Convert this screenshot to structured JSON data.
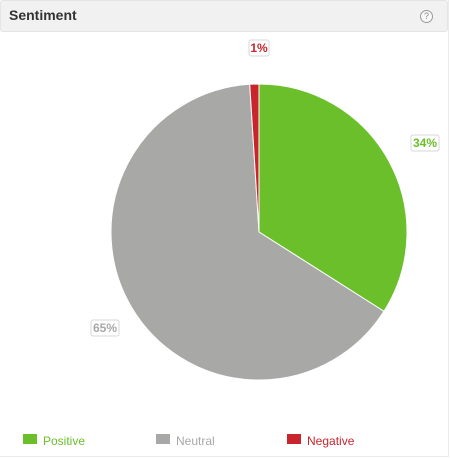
{
  "widget": {
    "title": "Sentiment",
    "help_icon": "help-circle-icon",
    "help_glyph": "?"
  },
  "chart_data": {
    "type": "pie",
    "title": "Sentiment",
    "categories": [
      "Positive",
      "Neutral",
      "Negative"
    ],
    "values": [
      34,
      65,
      1
    ],
    "data_labels": [
      "34%",
      "65%",
      "1%"
    ],
    "colors": [
      "#6abf2a",
      "#a8a8a7",
      "#c8252d"
    ],
    "label_colors": [
      "#6abf2a",
      "#a8a8a7",
      "#c8252d"
    ],
    "start_angle": "12 o'clock",
    "direction": "clockwise",
    "legend_position": "bottom"
  },
  "legend": {
    "items": [
      {
        "label": "Positive",
        "color": "#6abf2a"
      },
      {
        "label": "Neutral",
        "color": "#a8a8a7"
      },
      {
        "label": "Negative",
        "color": "#c8252d"
      }
    ]
  }
}
